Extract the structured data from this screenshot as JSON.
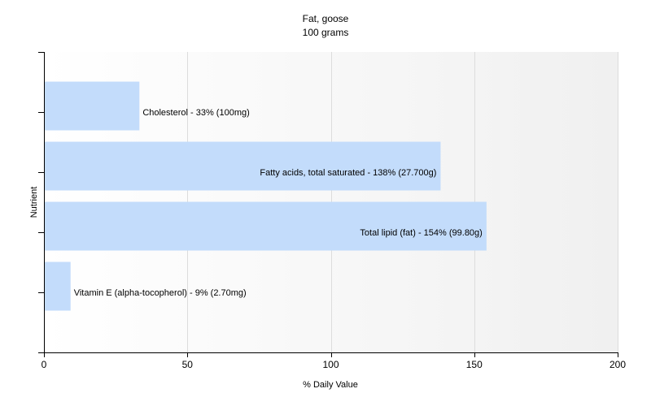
{
  "chart_data": {
    "type": "bar",
    "orientation": "horizontal",
    "title": "Fat, goose",
    "subtitle": "100 grams",
    "xlabel": "% Daily Value",
    "ylabel": "Nutrient",
    "xlim": [
      0,
      200
    ],
    "xticks": [
      0,
      50,
      100,
      150,
      200
    ],
    "grid": true,
    "legend": "none",
    "bar_color": "#c3dcfb",
    "categories": [
      "Cholesterol",
      "Fatty acids, total saturated",
      "Total lipid (fat)",
      "Vitamin E (alpha-tocopherol)"
    ],
    "values": [
      33,
      138,
      154,
      9
    ],
    "labels": [
      "Cholesterol - 33% (100mg)",
      "Fatty acids, total saturated - 138% (27.700g)",
      "Total lipid (fat) - 154% (99.80g)",
      "Vitamin E (alpha-tocopherol) - 9% (2.70mg)"
    ]
  }
}
